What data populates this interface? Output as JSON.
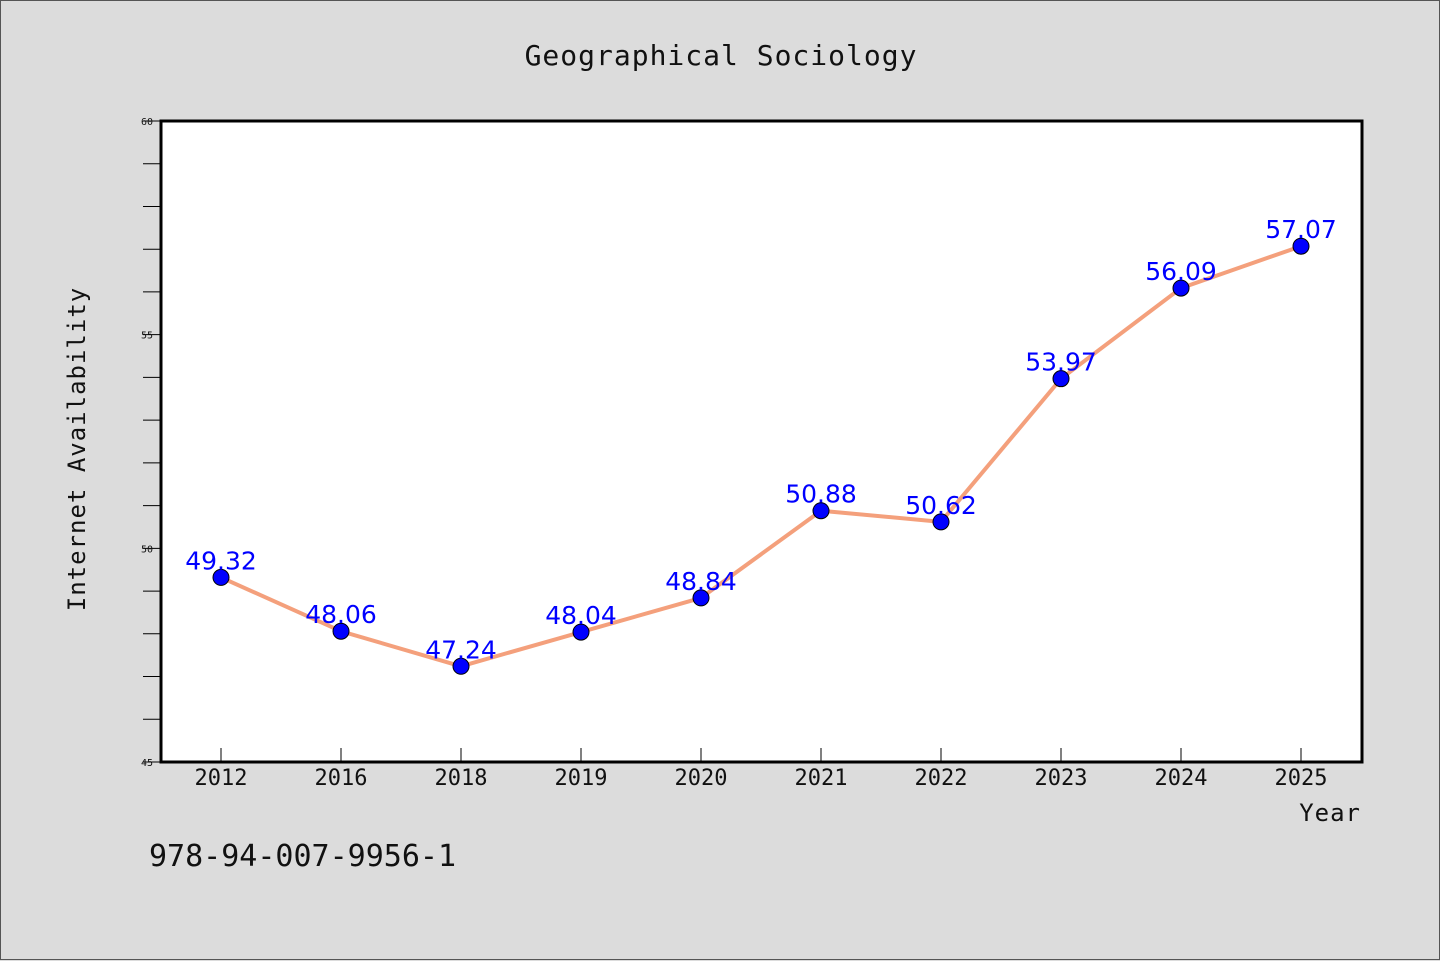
{
  "chart_data": {
    "type": "line",
    "title": "Geographical Sociology",
    "xlabel": "Year",
    "ylabel": "Internet Availability",
    "categories": [
      "2012",
      "2016",
      "2018",
      "2019",
      "2020",
      "2021",
      "2022",
      "2023",
      "2024",
      "2025"
    ],
    "series": [
      {
        "values": [
          49.32,
          48.06,
          47.24,
          48.04,
          48.84,
          50.88,
          50.62,
          53.97,
          56.09,
          57.07
        ],
        "data_labels": [
          "49.32",
          "48.06",
          "47.24",
          "48.04",
          "48.84",
          "50.88",
          "50.62",
          "53.97",
          "56.09",
          "57.07"
        ],
        "line_color": "#f4a07c",
        "marker_color": "#0000ff"
      }
    ],
    "ylim": [
      45,
      60
    ],
    "y_ticks": [
      45,
      50,
      55,
      60
    ],
    "grid": false,
    "legend": false
  },
  "footer": {
    "code": "978-94-007-9956-1"
  },
  "colors": {
    "background": "#dcdcdc",
    "plot_background": "#ffffff",
    "label_color": "#0000ff"
  }
}
